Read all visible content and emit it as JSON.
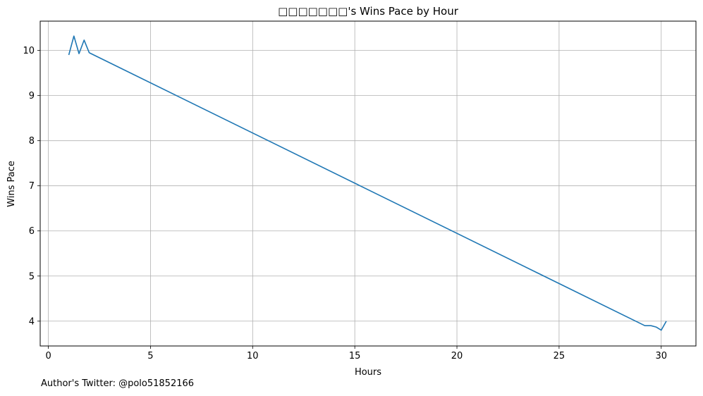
{
  "chart_data": {
    "type": "line",
    "title": "□□□□□□□'s Wins Pace by Hour",
    "xlabel": "Hours",
    "ylabel": "Wins Pace",
    "xlim": [
      -0.4,
      31.7
    ],
    "ylim": [
      3.45,
      10.65
    ],
    "x_ticks": [
      0,
      5,
      10,
      15,
      20,
      25,
      30
    ],
    "y_ticks": [
      4,
      5,
      6,
      7,
      8,
      9,
      10
    ],
    "grid": true,
    "series": [
      {
        "color": "#1f77b4",
        "x": [
          1.0,
          1.25,
          1.5,
          1.75,
          2.0,
          29.2,
          29.5,
          29.75,
          30.0,
          30.25
        ],
        "y": [
          9.9,
          10.32,
          9.93,
          10.23,
          9.95,
          3.9,
          3.9,
          3.87,
          3.8,
          4.0
        ]
      }
    ]
  },
  "footer": {
    "twitter_note": "Author's Twitter: @polo51852166"
  }
}
